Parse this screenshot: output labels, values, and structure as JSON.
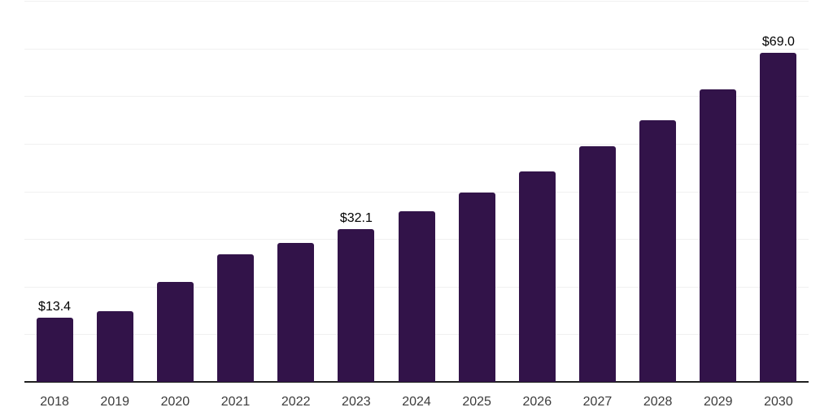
{
  "chart_data": {
    "type": "bar",
    "title": "",
    "xlabel": "",
    "ylabel": "",
    "categories": [
      "2018",
      "2019",
      "2020",
      "2021",
      "2022",
      "2023",
      "2024",
      "2025",
      "2026",
      "2027",
      "2028",
      "2029",
      "2030"
    ],
    "values": [
      13.4,
      14.9,
      21.0,
      26.7,
      29.2,
      32.1,
      35.8,
      39.7,
      44.1,
      49.4,
      54.9,
      61.4,
      69.0
    ],
    "annotations": [
      {
        "category": "2018",
        "label": "$13.4"
      },
      {
        "category": "2023",
        "label": "$32.1"
      },
      {
        "category": "2030",
        "label": "$69.0"
      }
    ],
    "value_prefix": "$",
    "ylim": [
      0,
      80
    ],
    "grid_step": 10,
    "grid": "horizontal-only",
    "legend": "none",
    "colors": {
      "bar": "#321349",
      "gridline": "#f0f0f0",
      "axis_line": "#1f1f1f",
      "value_label": "#000000",
      "tick_label": "#3c3c3c",
      "background": "#ffffff"
    }
  }
}
